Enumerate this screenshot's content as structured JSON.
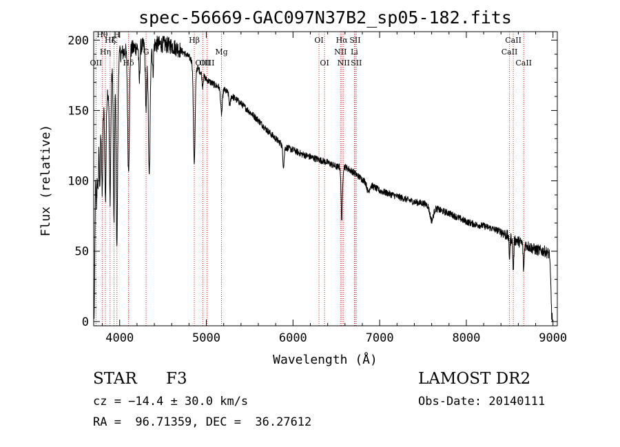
{
  "chart_data": {
    "type": "line",
    "title": "spec-56669-GAC097N37B2_sp05-182.fits",
    "xlabel": "Wavelength (Å)",
    "ylabel": "Flux (relative)",
    "xlim": [
      3700,
      9050
    ],
    "ylim": [
      -3,
      206
    ],
    "xticks": [
      4000,
      5000,
      6000,
      7000,
      8000,
      9000
    ],
    "yticks": [
      0,
      50,
      100,
      150,
      200
    ],
    "grid": false,
    "line_color": "#000000",
    "marker_color": "#cc2222",
    "continuum_points": [
      [
        3705,
        0
      ],
      [
        3712,
        40
      ],
      [
        3720,
        95
      ],
      [
        3740,
        120
      ],
      [
        3770,
        135
      ],
      [
        3800,
        145
      ],
      [
        3850,
        160
      ],
      [
        3900,
        175
      ],
      [
        3950,
        185
      ],
      [
        4000,
        190
      ],
      [
        4100,
        193
      ],
      [
        4200,
        195
      ],
      [
        4300,
        196
      ],
      [
        4400,
        197
      ],
      [
        4500,
        197
      ],
      [
        4600,
        196
      ],
      [
        4700,
        193
      ],
      [
        4800,
        188
      ],
      [
        4900,
        180
      ],
      [
        5000,
        172
      ],
      [
        5100,
        168
      ],
      [
        5200,
        165
      ],
      [
        5300,
        160
      ],
      [
        5400,
        155
      ],
      [
        5500,
        149
      ],
      [
        5600,
        143
      ],
      [
        5700,
        136
      ],
      [
        5800,
        130
      ],
      [
        5900,
        124
      ],
      [
        6000,
        122
      ],
      [
        6100,
        119
      ],
      [
        6200,
        117
      ],
      [
        6300,
        115
      ],
      [
        6400,
        113
      ],
      [
        6500,
        110
      ],
      [
        6600,
        110
      ],
      [
        6700,
        106
      ],
      [
        6800,
        101
      ],
      [
        6900,
        97
      ],
      [
        7000,
        93
      ],
      [
        7100,
        91
      ],
      [
        7200,
        89
      ],
      [
        7300,
        87
      ],
      [
        7400,
        85
      ],
      [
        7500,
        84
      ],
      [
        7600,
        82
      ],
      [
        7700,
        79
      ],
      [
        7800,
        77
      ],
      [
        7900,
        74
      ],
      [
        8000,
        71
      ],
      [
        8100,
        69
      ],
      [
        8200,
        68
      ],
      [
        8300,
        66
      ],
      [
        8400,
        64
      ],
      [
        8500,
        60
      ],
      [
        8600,
        57
      ],
      [
        8700,
        54
      ],
      [
        8800,
        51
      ],
      [
        8900,
        50
      ],
      [
        8960,
        48
      ],
      [
        8972,
        30
      ],
      [
        8985,
        5
      ],
      [
        8995,
        0
      ]
    ],
    "absorption_features": [
      {
        "center": 3734,
        "depth": 30,
        "width": 5
      },
      {
        "center": 3750,
        "depth": 35,
        "width": 5
      },
      {
        "center": 3771,
        "depth": 45,
        "width": 5
      },
      {
        "center": 3798,
        "depth": 55,
        "width": 6
      },
      {
        "center": 3836,
        "depth": 70,
        "width": 7
      },
      {
        "center": 3889,
        "depth": 85,
        "width": 8
      },
      {
        "center": 3934,
        "depth": 110,
        "width": 7
      },
      {
        "center": 3968,
        "depth": 130,
        "width": 9
      },
      {
        "center": 4102,
        "depth": 85,
        "width": 10
      },
      {
        "center": 4227,
        "depth": 25,
        "width": 6
      },
      {
        "center": 4305,
        "depth": 45,
        "width": 8
      },
      {
        "center": 4341,
        "depth": 95,
        "width": 10
      },
      {
        "center": 4384,
        "depth": 20,
        "width": 6
      },
      {
        "center": 4861,
        "depth": 70,
        "width": 10
      },
      {
        "center": 4957,
        "depth": 8,
        "width": 6
      },
      {
        "center": 5175,
        "depth": 18,
        "width": 10
      },
      {
        "center": 5270,
        "depth": 8,
        "width": 8
      },
      {
        "center": 5890,
        "depth": 14,
        "width": 8
      },
      {
        "center": 6563,
        "depth": 38,
        "width": 8
      },
      {
        "center": 6867,
        "depth": 6,
        "width": 15
      },
      {
        "center": 7600,
        "depth": 10,
        "width": 20
      },
      {
        "center": 8498,
        "depth": 14,
        "width": 6
      },
      {
        "center": 8542,
        "depth": 22,
        "width": 6
      },
      {
        "center": 8662,
        "depth": 18,
        "width": 6
      }
    ],
    "line_markers": [
      {
        "wavelength": 3727,
        "label": "OII",
        "row": 3
      },
      {
        "wavelength": 3798,
        "label": "Hθ",
        "row": 0
      },
      {
        "wavelength": 3835,
        "label": "Hη",
        "row": 2
      },
      {
        "wavelength": 3889,
        "label": "Hζ",
        "row": 1
      },
      {
        "wavelength": 3934,
        "label": "K",
        "row": 1
      },
      {
        "wavelength": 3968,
        "label": "H",
        "row": 0
      },
      {
        "wavelength": 4102,
        "label": "Hδ",
        "row": 3
      },
      {
        "wavelength": 4305,
        "label": "G",
        "row": 2
      },
      {
        "wavelength": 4861,
        "label": "Hβ",
        "row": 1
      },
      {
        "wavelength": 4959,
        "label": "OIII",
        "row": 3
      },
      {
        "wavelength": 5007,
        "label": "OIII",
        "row": 3
      },
      {
        "wavelength": 5175,
        "label": "Mg",
        "row": 2
      },
      {
        "wavelength": 6300,
        "label": "OI",
        "row": 1
      },
      {
        "wavelength": 6364,
        "label": "OI",
        "row": 3
      },
      {
        "wavelength": 6548,
        "label": "NII",
        "row": 2
      },
      {
        "wavelength": 6563,
        "label": "Hα",
        "row": 1
      },
      {
        "wavelength": 6584,
        "label": "NII",
        "row": 3
      },
      {
        "wavelength": 6708,
        "label": "Li",
        "row": 2
      },
      {
        "wavelength": 6717,
        "label": "SII",
        "row": 1
      },
      {
        "wavelength": 6731,
        "label": "SII",
        "row": 3
      },
      {
        "wavelength": 8498,
        "label": "CaII",
        "row": 2
      },
      {
        "wavelength": 8542,
        "label": "CaII",
        "row": 1
      },
      {
        "wavelength": 8662,
        "label": "CaII",
        "row": 3
      }
    ]
  },
  "info": {
    "object_class": "STAR",
    "subclass": "F3",
    "redshift": "cz = −14.4 ± 30.0 km/s",
    "coords": "RA =  96.71359, DEC =  36.27612",
    "survey": "LAMOST DR2",
    "obs_date": "Obs-Date: 20140111"
  }
}
